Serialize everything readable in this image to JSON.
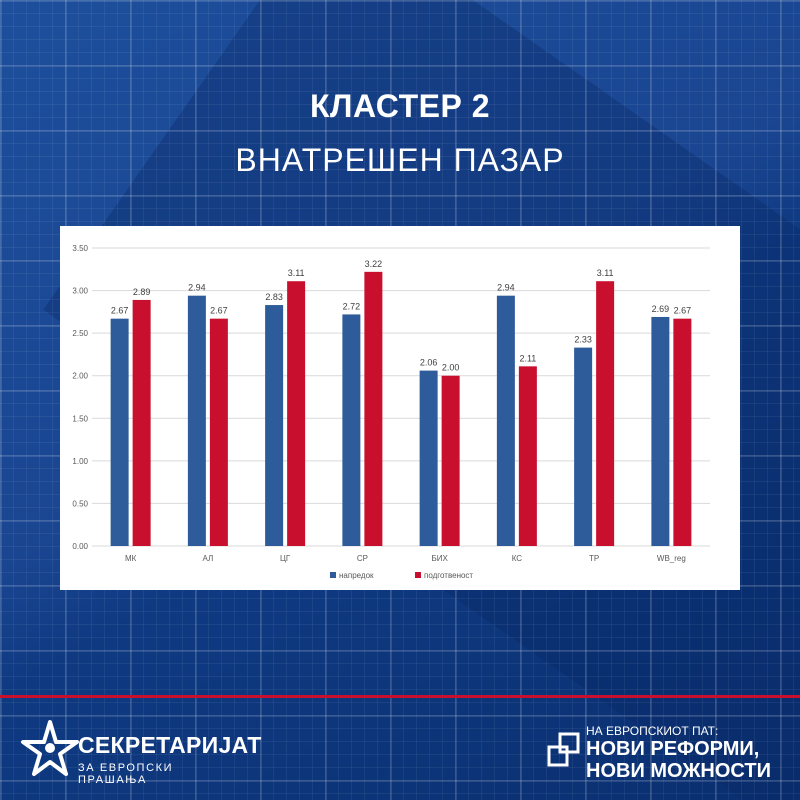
{
  "header": {
    "title": "КЛАСТЕР 2",
    "subtitle": "ВНАТРЕШЕН ПАЗАР"
  },
  "colors": {
    "background": "#1a4591",
    "series_1": "#2e5c9a",
    "series_2": "#c8102e",
    "accent_line": "#c8102e"
  },
  "chart_data": {
    "type": "bar",
    "categories": [
      "МК",
      "АЛ",
      "ЦГ",
      "СР",
      "БИХ",
      "КС",
      "ТР",
      "WB_reg"
    ],
    "series": [
      {
        "name": "напредок",
        "values": [
          2.67,
          2.94,
          2.83,
          2.72,
          2.06,
          2.94,
          2.33,
          2.69
        ]
      },
      {
        "name": "подготвеност",
        "values": [
          2.89,
          2.67,
          3.11,
          3.22,
          2.0,
          2.11,
          3.11,
          2.67
        ]
      }
    ],
    "ylim": [
      0,
      3.5
    ],
    "yticks": [
      "0.00",
      "0.50",
      "1.00",
      "1.50",
      "2.00",
      "2.50",
      "3.00",
      "3.50"
    ],
    "data_labels": [
      [
        "2.67",
        "2.94",
        "2.83",
        "2.72",
        "2.06",
        "2.94",
        "2.33",
        "2.69"
      ],
      [
        "2.89",
        "2.67",
        "3.11",
        "3.22",
        "2.00",
        "2.11",
        "3.11",
        "2.67"
      ]
    ],
    "grid": true,
    "legend": "bottom"
  },
  "footer": {
    "left_logo_title": "СЕКРЕТАРИЈАТ",
    "left_logo_subtitle": "ЗА ЕВРОПСКИ ПРАШАЊА",
    "right_slogan_top": "НА ЕВРОПСКИОТ ПАТ:",
    "right_slogan_line1": "НОВИ РЕФОРМИ,",
    "right_slogan_line2": "НОВИ МОЖНОСТИ"
  }
}
